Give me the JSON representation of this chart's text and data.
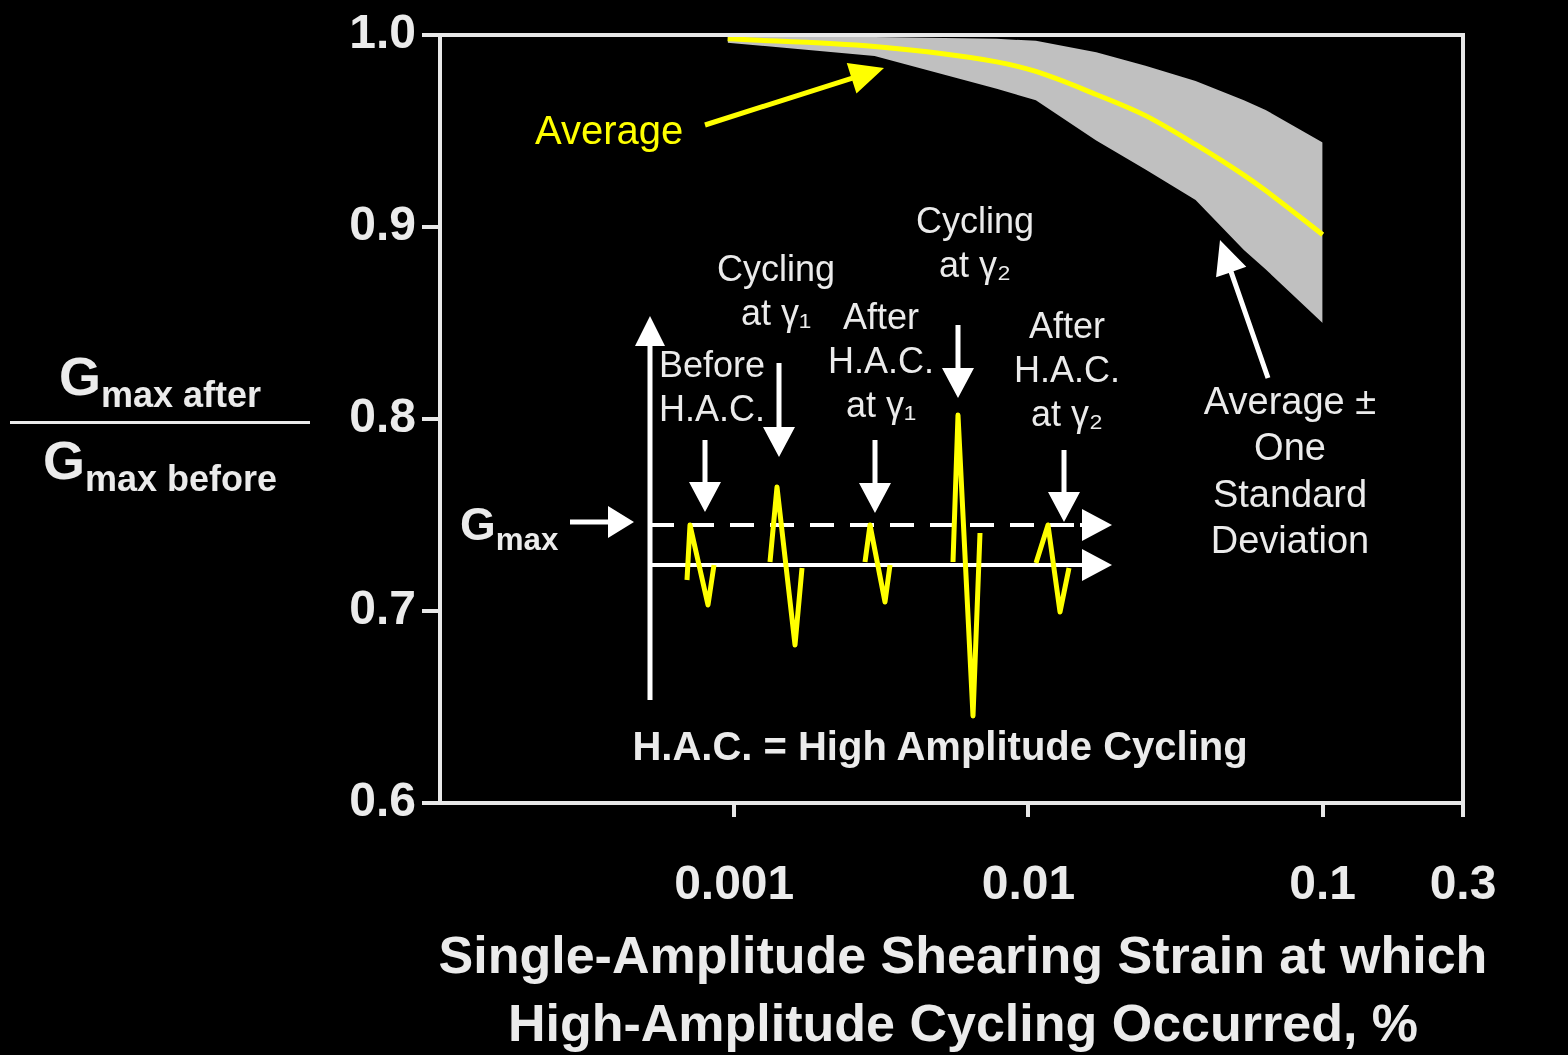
{
  "chart_data": {
    "type": "line",
    "xlabel": "Single-Amplitude Shearing Strain at which High-Amplitude Cycling Occurred, %",
    "ylabel": "G$_{max after}$\nG$_{max before}$",
    "log": "x",
    "marker": "none",
    "x": [
      0.00095,
      0.003,
      0.0078,
      0.0106,
      0.017,
      0.025,
      0.037,
      0.054,
      0.064,
      0.1
    ],
    "series": [
      {
        "color": "#ffff00",
        "values": [
          0.998,
          0.994,
          0.986,
          0.981,
          0.969,
          0.958,
          0.943,
          0.927,
          0.919,
          0.896
        ],
        "lower": [
          0.996,
          0.989,
          0.972,
          0.966,
          0.945,
          0.93,
          0.914,
          0.888,
          0.878,
          0.85
        ],
        "upper": [
          0.999,
          0.999,
          0.998,
          0.997,
          0.991,
          0.984,
          0.976,
          0.966,
          0.961,
          0.944
        ]
      }
    ],
    "xlim": [
      0.0001,
      0.3
    ],
    "xticks": [
      0.001,
      0.01,
      0.1,
      0.3
    ],
    "ylim": [
      0.6,
      1.0
    ],
    "yticks": [
      0.6,
      0.7,
      0.8,
      0.9,
      {
        "value": 1.0,
        "label": "1.0"
      }
    ],
    "annotations": [
      "Average",
      "Average ± One Standard Deviation",
      "Before H.A.C.",
      "Cycling at γ₁",
      "After H.A.C. at γ₁",
      "Cycling at γ₂",
      "After H.A.C. at γ₂",
      "H.A.C. = High Amplitude Cycling",
      "G$_{max}$"
    ]
  }
}
